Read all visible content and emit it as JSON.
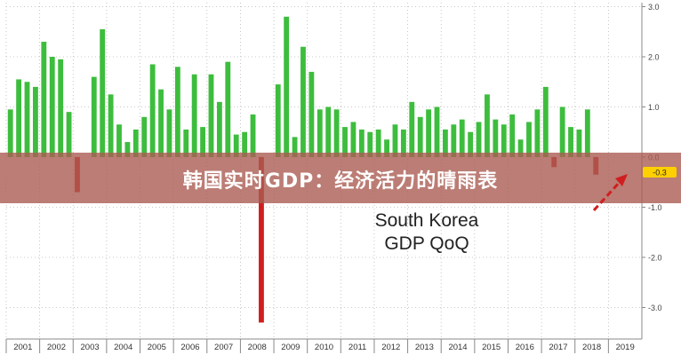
{
  "banner": {
    "text": "韩国实时GDP：经济活力的晴雨表"
  },
  "annotation": {
    "line1": "South Korea",
    "line2": "GDP QoQ"
  },
  "colors": {
    "positive": "#3dbd3d",
    "negative": "#d01e1e",
    "axis": "#888888",
    "arrow": "#d01e1e"
  },
  "chart_data": {
    "type": "bar",
    "title": "",
    "xlabel": "",
    "ylabel": "",
    "ylim": [
      -3.5,
      3.2
    ],
    "grid": true,
    "y_ticks": [
      "3.0",
      "2.0",
      "1.0",
      "0.0",
      "-1.0",
      "-2.0",
      "-3.0"
    ],
    "y_tick_values": [
      3,
      2,
      1,
      0,
      -1,
      -2,
      -3
    ],
    "years": [
      "2001",
      "2002",
      "2003",
      "2004",
      "2005",
      "2006",
      "2007",
      "2008",
      "2009",
      "2010",
      "2011",
      "2012",
      "2013",
      "2014",
      "2015",
      "2016",
      "2017",
      "2018",
      "2019"
    ],
    "series": [
      {
        "values": [
          0.95,
          1.55,
          1.5,
          1.4,
          2.3,
          2.0,
          1.95,
          0.9,
          -0.7,
          0,
          1.6,
          2.55,
          1.25,
          0.65,
          0.3,
          0.55,
          0.8,
          1.85,
          1.35,
          0.95,
          1.8,
          0.55,
          1.65,
          0.6,
          1.65,
          1.1,
          1.9,
          0.45,
          0.5,
          0.85,
          -3.3,
          0,
          1.45,
          2.8,
          0.4,
          2.2,
          1.7,
          0.95,
          1.0,
          0.95,
          0.6,
          0.7,
          0.55,
          0.5,
          0.55,
          0.35,
          0.65,
          0.55,
          1.1,
          0.8,
          0.95,
          1.0,
          0.55,
          0.65,
          0.75,
          0.5,
          0.7,
          1.25,
          0.75,
          0.65,
          0.85,
          0.35,
          0.7,
          0.95,
          1.4,
          -0.2,
          1.0,
          0.6,
          0.55,
          0.95,
          -0.35
        ]
      }
    ],
    "callout": {
      "label": "-0.3",
      "value": -0.3
    }
  }
}
